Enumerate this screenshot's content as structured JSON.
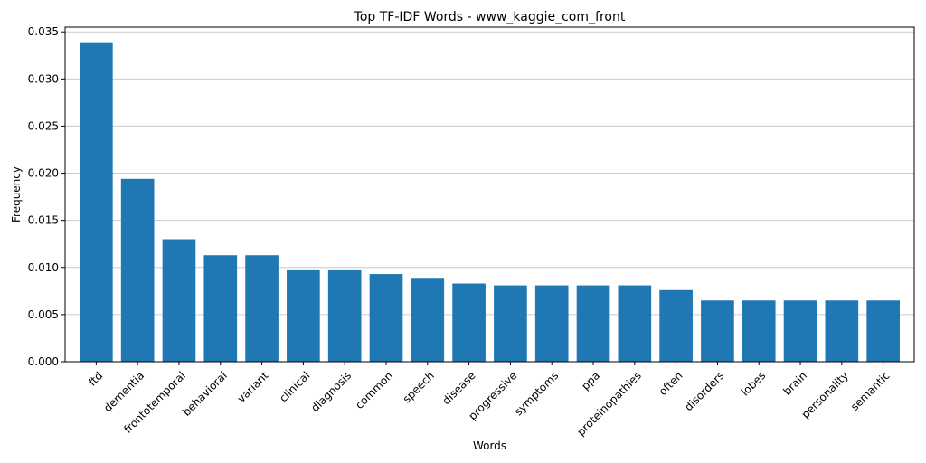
{
  "chart_data": {
    "type": "bar",
    "title": "Top TF-IDF Words - www_kaggie_com_front",
    "xlabel": "Words",
    "ylabel": "Frequency",
    "ylim": [
      0,
      0.0355
    ],
    "yticks": [
      "0.000",
      "0.005",
      "0.010",
      "0.015",
      "0.020",
      "0.025",
      "0.030",
      "0.035"
    ],
    "ytick_values": [
      0,
      0.005,
      0.01,
      0.015,
      0.02,
      0.025,
      0.03,
      0.035
    ],
    "grid": "y",
    "bar_color": "#1f77b4",
    "categories": [
      "ftd",
      "dementia",
      "frontotemporal",
      "behavioral",
      "variant",
      "clinical",
      "diagnosis",
      "common",
      "speech",
      "disease",
      "progressive",
      "symptoms",
      "ppa",
      "proteinopathies",
      "often",
      "disorders",
      "lobes",
      "brain",
      "personality",
      "semantic"
    ],
    "values": [
      0.0339,
      0.0194,
      0.013,
      0.0113,
      0.0113,
      0.0097,
      0.0097,
      0.0093,
      0.0089,
      0.0083,
      0.0081,
      0.0081,
      0.0081,
      0.0081,
      0.0076,
      0.0065,
      0.0065,
      0.0065,
      0.0065,
      0.0065
    ]
  }
}
